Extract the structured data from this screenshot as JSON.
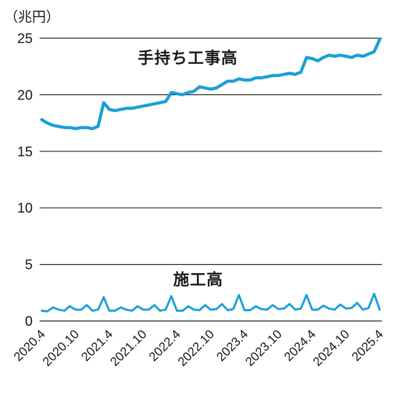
{
  "header": {
    "unit_label": "（兆円）"
  },
  "annotations": {
    "series1_label": "手持ち工事高",
    "series2_label": "施工高"
  },
  "colors": {
    "line": "#1a9fd8",
    "axis": "#1a1a1a",
    "text": "#1a1a1a",
    "background": "#ffffff"
  },
  "chart_data": {
    "type": "line",
    "title": "",
    "xlabel": "",
    "ylabel": "（兆円）",
    "ylim": [
      0,
      25
    ],
    "y_ticks": [
      0,
      5,
      10,
      15,
      20,
      25
    ],
    "grid": "horizontal",
    "legend_position": "inline-annotations",
    "x_tick_labels": [
      "2020.4",
      "2020.10",
      "2021.4",
      "2021.10",
      "2022.4",
      "2022.10",
      "2023.4",
      "2023.10",
      "2024.4",
      "2024.10",
      "2025.4"
    ],
    "months_per_tick": 6,
    "x_start": "2020.4",
    "x_end": "2025.4",
    "x_frequency": "monthly",
    "series": [
      {
        "name": "手持ち工事高",
        "values": [
          17.8,
          17.5,
          17.3,
          17.2,
          17.1,
          17.1,
          17.0,
          17.1,
          17.1,
          17.0,
          17.2,
          19.3,
          18.7,
          18.6,
          18.7,
          18.8,
          18.8,
          18.9,
          19.0,
          19.1,
          19.2,
          19.3,
          19.4,
          20.2,
          20.1,
          20.0,
          20.2,
          20.3,
          20.7,
          20.6,
          20.5,
          20.6,
          20.9,
          21.2,
          21.2,
          21.4,
          21.3,
          21.3,
          21.5,
          21.5,
          21.6,
          21.7,
          21.7,
          21.8,
          21.9,
          21.8,
          22.0,
          23.3,
          23.2,
          23.0,
          23.3,
          23.5,
          23.4,
          23.5,
          23.4,
          23.3,
          23.5,
          23.4,
          23.6,
          23.8,
          24.9
        ]
      },
      {
        "name": "施工高",
        "values": [
          0.9,
          0.85,
          1.2,
          1.0,
          0.9,
          1.3,
          1.0,
          1.0,
          1.4,
          0.9,
          1.0,
          2.1,
          0.9,
          0.9,
          1.2,
          1.0,
          0.9,
          1.3,
          1.0,
          1.0,
          1.4,
          0.9,
          1.0,
          2.2,
          0.9,
          0.9,
          1.3,
          1.0,
          0.95,
          1.4,
          1.0,
          1.05,
          1.5,
          0.95,
          1.05,
          2.3,
          0.95,
          0.95,
          1.3,
          1.05,
          1.0,
          1.4,
          1.05,
          1.1,
          1.5,
          1.0,
          1.1,
          2.3,
          1.0,
          1.0,
          1.35,
          1.1,
          1.0,
          1.45,
          1.1,
          1.15,
          1.6,
          1.0,
          1.15,
          2.4,
          1.0
        ]
      }
    ]
  }
}
